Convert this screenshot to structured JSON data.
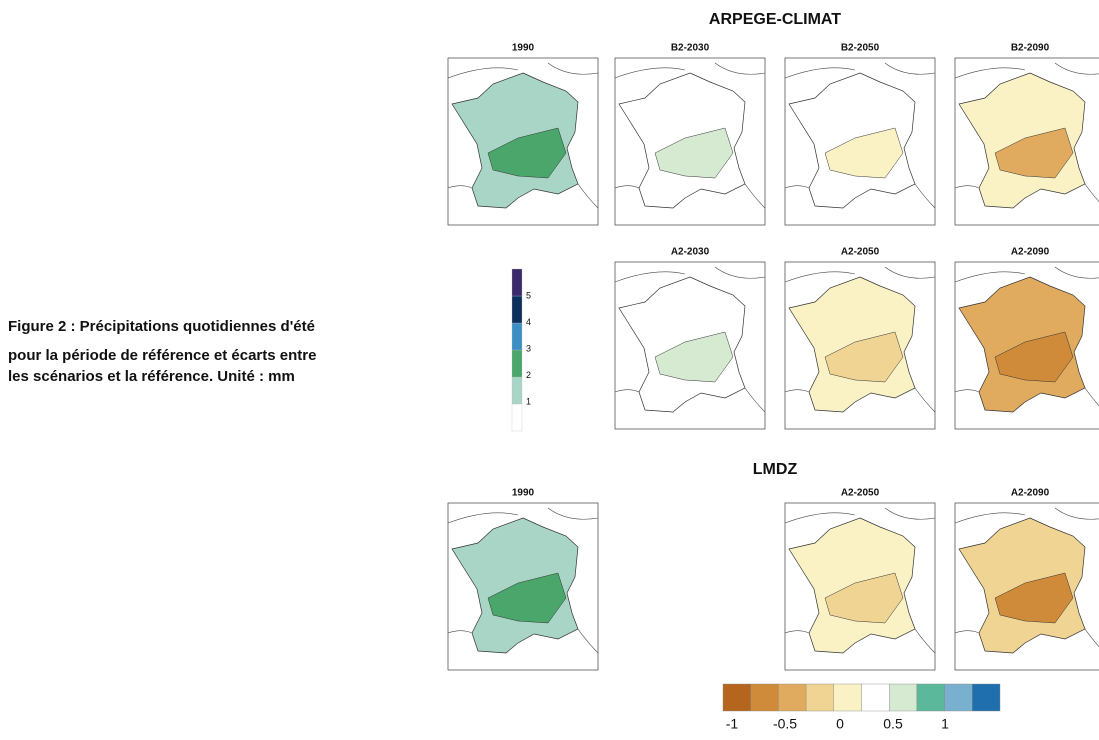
{
  "caption": [
    "Figure 2 : Précipitations quotidiennes d'été",
    "pour la période de référence et écarts entre",
    "les scénarios et la référence. Unité : mm"
  ],
  "sections": [
    {
      "title": "ARPEGE-CLIMAT",
      "panels": [
        "1990",
        "B2-2030",
        "B2-2050",
        "B2-2090",
        "A2-2030",
        "A2-2050",
        "A2-2090"
      ]
    },
    {
      "title": "LMDZ",
      "panels": [
        "1990",
        "A2-2050",
        "A2-2090"
      ]
    }
  ],
  "reference_scale": {
    "ticks": [
      "1",
      "2",
      "3",
      "4",
      "5"
    ]
  },
  "anomaly_scale": {
    "ticks": [
      "-1",
      "-0.5",
      "0",
      "0.5",
      "1"
    ]
  }
}
